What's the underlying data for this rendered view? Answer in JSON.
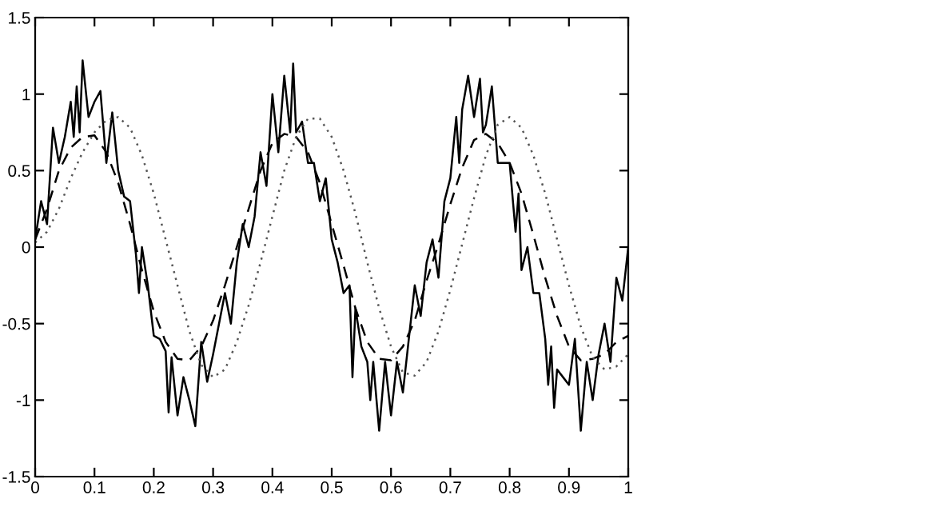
{
  "chart_data": {
    "type": "line",
    "xlim": [
      0,
      1
    ],
    "ylim": [
      -1.5,
      1.5
    ],
    "xticks": [
      0,
      0.1,
      0.2,
      0.3,
      0.4,
      0.5,
      0.6,
      0.7,
      0.8,
      0.9,
      1
    ],
    "yticks": [
      -1.5,
      -1,
      -0.5,
      0,
      0.5,
      1,
      1.5
    ],
    "grid": false,
    "marker": "none",
    "series": [
      {
        "color": "#000000",
        "line_style": "solid",
        "x": [
          0,
          0.01,
          0.02,
          0.03,
          0.04,
          0.05,
          0.06,
          0.065,
          0.07,
          0.075,
          0.08,
          0.09,
          0.1,
          0.11,
          0.12,
          0.13,
          0.14,
          0.15,
          0.16,
          0.17,
          0.175,
          0.18,
          0.19,
          0.2,
          0.21,
          0.22,
          0.225,
          0.23,
          0.24,
          0.25,
          0.26,
          0.27,
          0.28,
          0.29,
          0.3,
          0.31,
          0.32,
          0.33,
          0.34,
          0.35,
          0.36,
          0.37,
          0.38,
          0.39,
          0.4,
          0.41,
          0.42,
          0.43,
          0.435,
          0.44,
          0.45,
          0.46,
          0.47,
          0.48,
          0.49,
          0.5,
          0.51,
          0.52,
          0.53,
          0.535,
          0.54,
          0.55,
          0.56,
          0.565,
          0.57,
          0.58,
          0.59,
          0.6,
          0.61,
          0.62,
          0.63,
          0.64,
          0.65,
          0.66,
          0.67,
          0.68,
          0.69,
          0.7,
          0.71,
          0.715,
          0.72,
          0.73,
          0.74,
          0.75,
          0.755,
          0.76,
          0.77,
          0.78,
          0.79,
          0.8,
          0.81,
          0.815,
          0.82,
          0.83,
          0.84,
          0.85,
          0.86,
          0.865,
          0.87,
          0.875,
          0.88,
          0.89,
          0.9,
          0.91,
          0.92,
          0.93,
          0.94,
          0.95,
          0.96,
          0.97,
          0.98,
          0.99,
          1
        ],
        "values": [
          0.05,
          0.3,
          0.15,
          0.78,
          0.55,
          0.72,
          0.95,
          0.72,
          1.05,
          0.75,
          1.22,
          0.85,
          0.95,
          1.02,
          0.55,
          0.88,
          0.5,
          0.33,
          0.3,
          -0.05,
          -0.3,
          0.0,
          -0.25,
          -0.58,
          -0.6,
          -0.68,
          -1.08,
          -0.72,
          -1.1,
          -0.85,
          -1.0,
          -1.17,
          -0.62,
          -0.88,
          -0.7,
          -0.5,
          -0.3,
          -0.5,
          -0.1,
          0.15,
          0.0,
          0.2,
          0.62,
          0.4,
          1.0,
          0.62,
          1.12,
          0.75,
          1.2,
          0.75,
          0.82,
          0.55,
          0.55,
          0.3,
          0.45,
          0.05,
          -0.1,
          -0.3,
          -0.25,
          -0.85,
          -0.4,
          -0.65,
          -0.75,
          -1.0,
          -0.75,
          -1.2,
          -0.75,
          -1.1,
          -0.75,
          -0.95,
          -0.6,
          -0.25,
          -0.45,
          -0.1,
          0.05,
          -0.2,
          0.3,
          0.45,
          0.85,
          0.55,
          0.9,
          1.12,
          0.85,
          1.1,
          0.75,
          0.8,
          1.05,
          0.55,
          0.55,
          0.55,
          0.1,
          0.35,
          -0.15,
          0.0,
          -0.3,
          -0.3,
          -0.6,
          -0.9,
          -0.65,
          -1.05,
          -0.8,
          -0.85,
          -0.9,
          -0.6,
          -1.2,
          -0.75,
          -1.0,
          -0.7,
          -0.5,
          -0.75,
          -0.2,
          -0.35,
          0.0
        ]
      },
      {
        "color": "#000000",
        "line_style": "dashed",
        "x": [
          0,
          0.02,
          0.04,
          0.06,
          0.08,
          0.1,
          0.12,
          0.14,
          0.16,
          0.18,
          0.2,
          0.22,
          0.24,
          0.26,
          0.28,
          0.3,
          0.32,
          0.34,
          0.36,
          0.38,
          0.4,
          0.42,
          0.44,
          0.46,
          0.48,
          0.5,
          0.52,
          0.54,
          0.56,
          0.58,
          0.6,
          0.62,
          0.64,
          0.66,
          0.68,
          0.7,
          0.72,
          0.74,
          0.76,
          0.78,
          0.8,
          0.82,
          0.84,
          0.86,
          0.88,
          0.9,
          0.92,
          0.94,
          0.96,
          0.98,
          1
        ],
        "values": [
          0.05,
          0.25,
          0.5,
          0.65,
          0.72,
          0.73,
          0.62,
          0.42,
          0.15,
          -0.15,
          -0.42,
          -0.62,
          -0.73,
          -0.74,
          -0.65,
          -0.48,
          -0.25,
          0.0,
          0.25,
          0.5,
          0.68,
          0.74,
          0.72,
          0.62,
          0.42,
          0.15,
          -0.12,
          -0.4,
          -0.62,
          -0.73,
          -0.74,
          -0.65,
          -0.48,
          -0.22,
          0.02,
          0.28,
          0.52,
          0.7,
          0.74,
          0.68,
          0.55,
          0.35,
          0.08,
          -0.2,
          -0.45,
          -0.65,
          -0.74,
          -0.73,
          -0.7,
          -0.62,
          -0.58
        ]
      },
      {
        "color": "#555555",
        "line_style": "dotted",
        "x": [
          0,
          0.02,
          0.04,
          0.06,
          0.08,
          0.1,
          0.12,
          0.14,
          0.16,
          0.18,
          0.2,
          0.22,
          0.24,
          0.26,
          0.28,
          0.3,
          0.32,
          0.34,
          0.36,
          0.38,
          0.4,
          0.42,
          0.44,
          0.46,
          0.48,
          0.5,
          0.52,
          0.54,
          0.56,
          0.58,
          0.6,
          0.62,
          0.64,
          0.66,
          0.68,
          0.7,
          0.72,
          0.74,
          0.76,
          0.78,
          0.8,
          0.82,
          0.84,
          0.86,
          0.88,
          0.9,
          0.92,
          0.94,
          0.96,
          0.98,
          1
        ],
        "values": [
          0.03,
          0.1,
          0.25,
          0.45,
          0.62,
          0.75,
          0.83,
          0.85,
          0.78,
          0.6,
          0.35,
          0.05,
          -0.25,
          -0.55,
          -0.77,
          -0.85,
          -0.8,
          -0.62,
          -0.38,
          -0.1,
          0.2,
          0.5,
          0.72,
          0.84,
          0.84,
          0.72,
          0.5,
          0.22,
          -0.1,
          -0.4,
          -0.65,
          -0.82,
          -0.84,
          -0.75,
          -0.55,
          -0.28,
          0.02,
          0.32,
          0.6,
          0.8,
          0.85,
          0.78,
          0.6,
          0.35,
          0.05,
          -0.25,
          -0.52,
          -0.72,
          -0.8,
          -0.78,
          -0.7
        ]
      }
    ]
  }
}
